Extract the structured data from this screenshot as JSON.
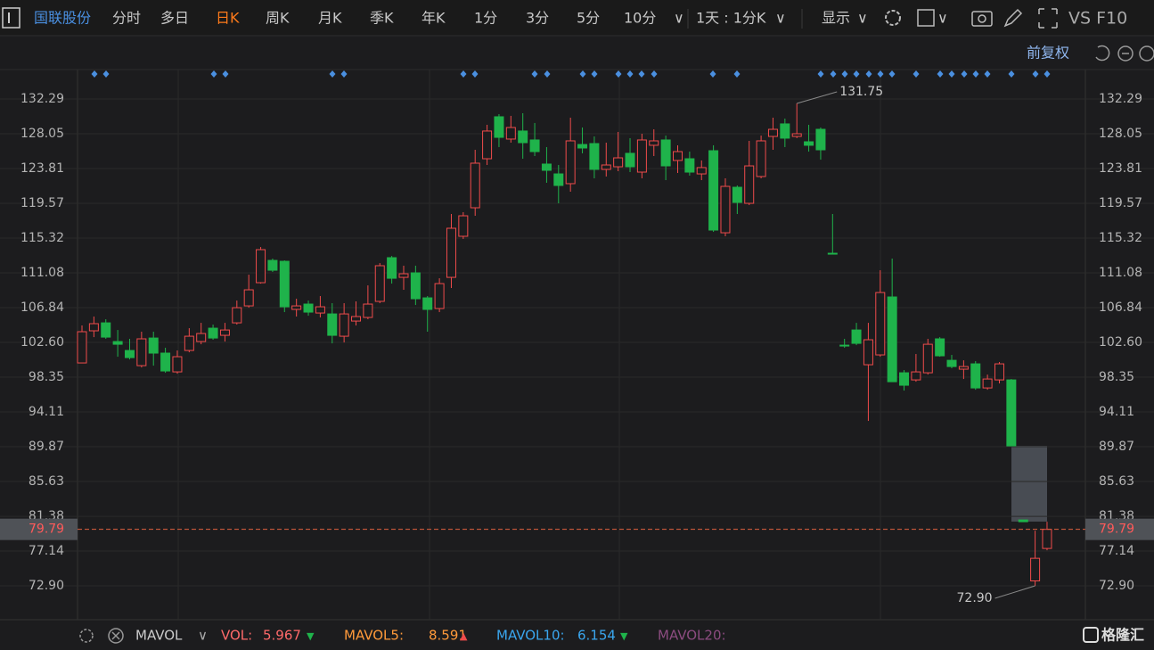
{
  "toolbar": {
    "stock": "国联股份",
    "periods": [
      "分时",
      "多日",
      "日K",
      "周K",
      "月K",
      "季K",
      "年K",
      "1分",
      "3分",
      "5分",
      "10分"
    ],
    "range": "1天 : 1分K",
    "display": "显示",
    "compare": "VS F10"
  },
  "price_mode": "前复权",
  "chart_data": {
    "type": "candlestick",
    "open": [
      100.09,
      104.01,
      104.98,
      102.7,
      101.61,
      99.76,
      103.13,
      101.29,
      99.0,
      101.61,
      102.7,
      104.33,
      103.46,
      104.98,
      107.05,
      109.88,
      112.6,
      112.49,
      106.62,
      107.27,
      106.18,
      106.07,
      103.35,
      105.2,
      105.64,
      107.6,
      112.93,
      110.53,
      111.08,
      108.03,
      106.73,
      110.53,
      115.54,
      119.02,
      125.0,
      130.12,
      127.4,
      128.38,
      127.29,
      124.35,
      123.15,
      121.96,
      126.74,
      126.85,
      123.7,
      124.02,
      125.66,
      123.37,
      126.64,
      127.29,
      124.79,
      125.0,
      123.15,
      125.98,
      115.97,
      121.52,
      119.56,
      122.83,
      127.72,
      129.25,
      127.72,
      127.07,
      128.59,
      113.47,
      102.26,
      104.11,
      99.87,
      101.07,
      108.14,
      98.89,
      98.02,
      98.89,
      103.03,
      100.41,
      99.33,
      99.98,
      97.04,
      98.02,
      98.02,
      80.94,
      73.5,
      77.46
    ],
    "high": [
      104.66,
      105.75,
      105.42,
      104.11,
      103.03,
      103.9,
      103.9,
      101.94,
      101.61,
      104.33,
      104.98,
      104.77,
      104.98,
      107.7,
      110.86,
      114.23,
      112.82,
      112.6,
      107.92,
      107.7,
      108.25,
      107.38,
      107.38,
      107.6,
      109.55,
      112.27,
      113.14,
      111.95,
      111.95,
      108.25,
      110.42,
      118.26,
      118.48,
      126.09,
      129.14,
      130.44,
      130.23,
      130.55,
      129.36,
      126.42,
      124.24,
      130.01,
      128.81,
      127.72,
      126.96,
      128.27,
      127.51,
      128.05,
      128.59,
      127.83,
      126.64,
      125.87,
      124.79,
      126.64,
      122.61,
      121.74,
      127.18,
      127.83,
      130.01,
      129.9,
      131.75,
      129.14,
      128.81,
      118.26,
      103.03,
      104.98,
      104.98,
      111.4,
      112.82,
      99.22,
      101.18,
      103.03,
      103.24,
      101.07,
      100.41,
      100.31,
      98.67,
      100.2,
      98.13,
      80.94,
      79.63,
      80.72
    ],
    "low": [
      100.09,
      103.24,
      103.03,
      100.85,
      100.52,
      99.54,
      99.76,
      98.89,
      98.78,
      101.39,
      102.37,
      102.92,
      102.7,
      104.77,
      106.83,
      109.77,
      111.19,
      106.29,
      105.75,
      105.85,
      105.64,
      102.48,
      102.59,
      104.66,
      105.42,
      107.38,
      109.77,
      109.01,
      107.16,
      103.9,
      106.29,
      109.23,
      115.21,
      118.04,
      124.24,
      126.42,
      126.96,
      125.0,
      125.33,
      122.07,
      119.56,
      120.98,
      125.66,
      122.61,
      122.83,
      123.48,
      123.37,
      122.61,
      125.33,
      122.39,
      123.26,
      122.94,
      122.39,
      116.08,
      115.54,
      118.26,
      119.35,
      122.61,
      126.09,
      126.42,
      127.51,
      125.87,
      124.89,
      113.36,
      101.94,
      102.26,
      93.02,
      100.85,
      97.8,
      96.72,
      97.8,
      98.67,
      100.85,
      99.44,
      98.13,
      96.82,
      96.82,
      97.59,
      89.97,
      80.72,
      72.9,
      77.24
    ],
    "close": [
      103.9,
      104.88,
      103.24,
      102.37,
      100.74,
      103.03,
      101.29,
      99.11,
      100.85,
      103.35,
      103.68,
      103.13,
      104.11,
      106.83,
      109.01,
      113.91,
      111.4,
      106.94,
      107.05,
      106.29,
      106.94,
      103.46,
      106.07,
      105.75,
      107.27,
      111.95,
      110.42,
      110.97,
      107.92,
      106.62,
      109.77,
      116.52,
      118.04,
      124.46,
      128.38,
      127.61,
      128.81,
      126.96,
      125.87,
      123.59,
      121.74,
      127.18,
      126.31,
      123.7,
      124.24,
      125.11,
      124.02,
      127.29,
      127.18,
      124.13,
      125.87,
      123.37,
      123.92,
      116.3,
      121.63,
      119.67,
      124.13,
      127.18,
      128.59,
      127.51,
      128.05,
      126.64,
      126.09,
      113.36,
      102.16,
      102.48,
      102.92,
      108.68,
      97.8,
      97.37,
      99.0,
      102.37,
      100.96,
      99.65,
      99.65,
      97.04,
      98.13,
      99.98,
      89.97,
      80.72,
      76.26,
      79.79
    ],
    "up_color": "#ef4b4b",
    "down_color": "#1fb34b",
    "ylim": [
      68.77,
      135.88
    ],
    "yticks": [
      132.29,
      128.05,
      123.81,
      119.57,
      115.32,
      111.08,
      106.84,
      {
        "value": 102.6,
        "label": "102.60"
      },
      98.35,
      94.11,
      89.87,
      85.63,
      81.38,
      77.14,
      {
        "value": 72.9,
        "label": "72.90"
      }
    ],
    "grid": true,
    "last_price": 79.79,
    "annotations": [
      {
        "value": 131.75
      },
      {
        "value": 72.9,
        "label": "72.90"
      }
    ]
  },
  "indicator": {
    "name": "MAVOL",
    "items": [
      {
        "label": "VOL:",
        "value": 5.967
      },
      {
        "label": "MAVOL5:",
        "value": 8.591
      },
      {
        "label": "MAVOL10:",
        "value": 6.154
      },
      {
        "label": "MAVOL20:"
      }
    ]
  },
  "logo": "格隆汇"
}
